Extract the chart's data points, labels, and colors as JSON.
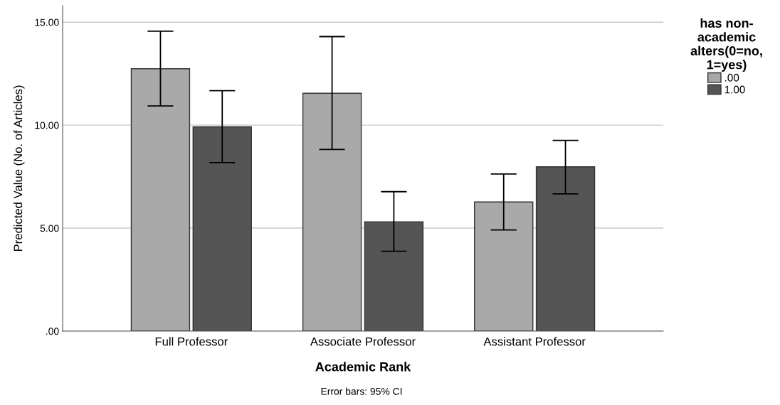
{
  "chart_data": {
    "type": "bar",
    "xlabel": "Academic Rank",
    "ylabel": "Predicted Value (No. of Articles)",
    "categories": [
      "Full Professor",
      "Associate Professor",
      "Assistant Professor"
    ],
    "series": [
      {
        "name": ".00",
        "color": "#a9a9a9",
        "values": [
          12.74,
          11.55,
          6.27
        ],
        "errors": [
          [
            10.93,
            14.56
          ],
          [
            8.82,
            14.3
          ],
          [
            4.91,
            7.63
          ]
        ]
      },
      {
        "name": "1.00",
        "color": "#555555",
        "values": [
          9.92,
          5.31,
          7.98
        ],
        "errors": [
          [
            8.18,
            11.67
          ],
          [
            3.88,
            6.77
          ],
          [
            6.66,
            9.26
          ]
        ]
      }
    ],
    "legend_title": "has non-\nacademic\nalters(0=no,\n1=yes)",
    "legend": "top right",
    "ylim": [
      0,
      15.8
    ],
    "yticks": [
      {
        "value": 0,
        "label": ".00"
      },
      {
        "value": 5,
        "label": "5.00"
      },
      {
        "value": 10,
        "label": "10.00"
      },
      {
        "value": 15,
        "label": "15.00"
      }
    ],
    "grid": "y",
    "annotations": [
      "Error bars: 95% CI"
    ]
  }
}
